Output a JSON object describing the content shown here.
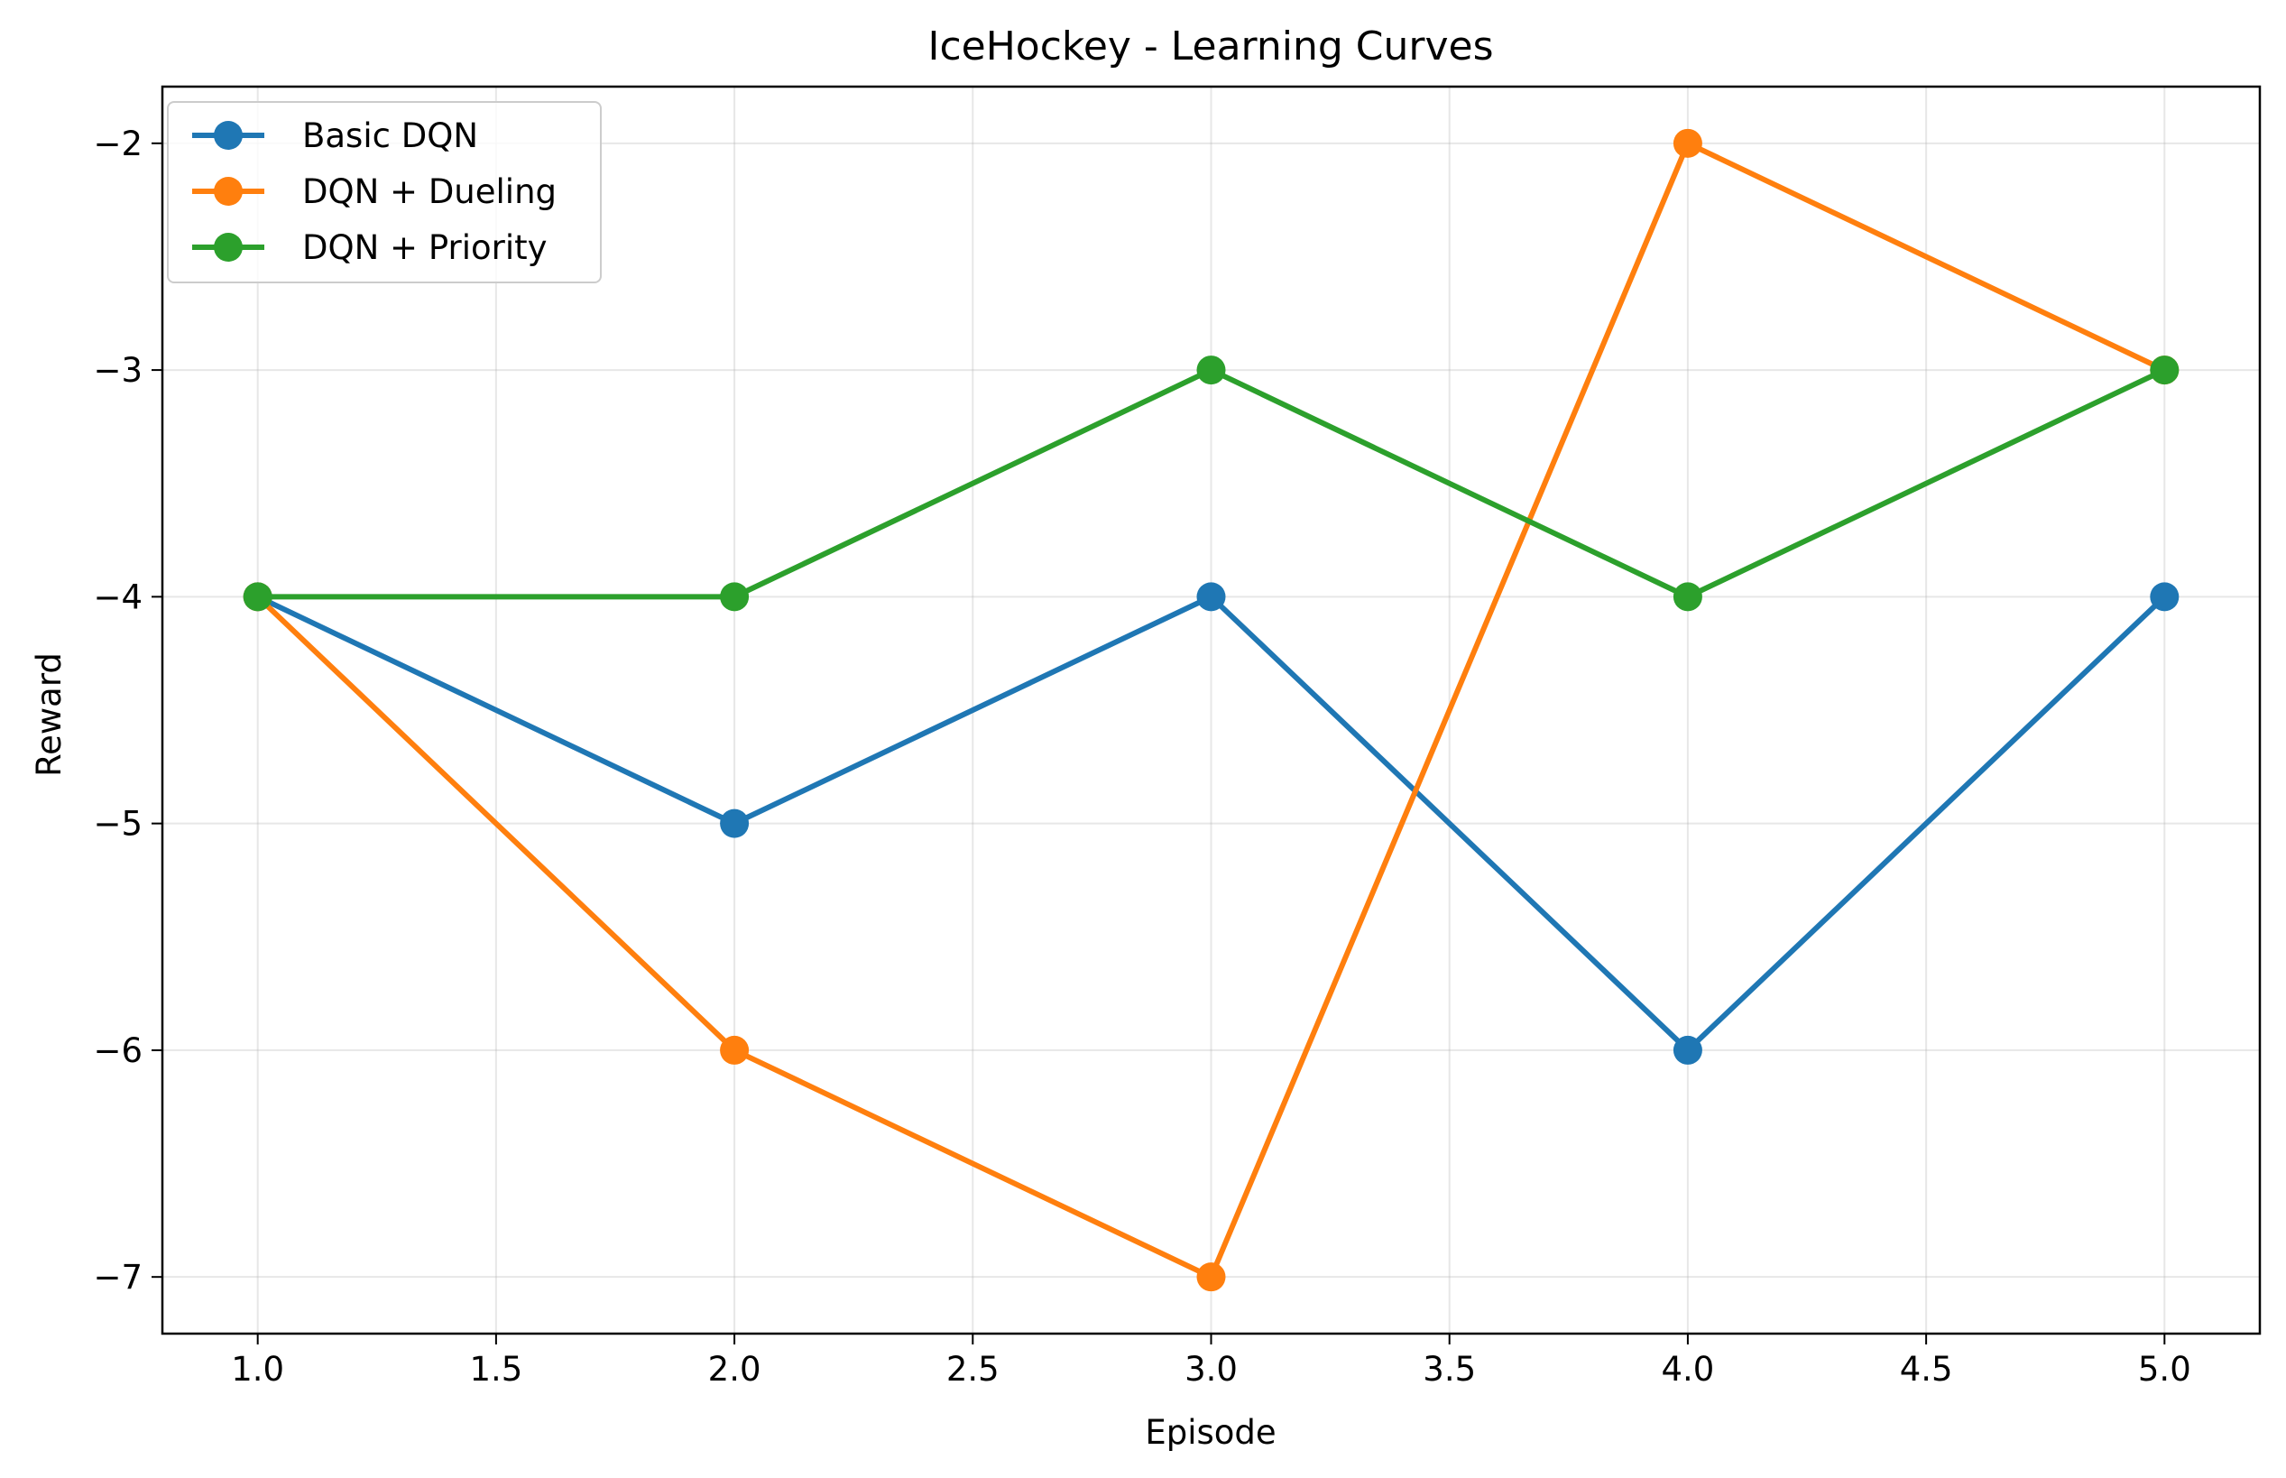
{
  "chart_data": {
    "type": "line",
    "title": "IceHockey - Learning Curves",
    "xlabel": "Episode",
    "ylabel": "Reward",
    "x": [
      1,
      2,
      3,
      4,
      5
    ],
    "xlim": [
      0.8,
      5.2
    ],
    "ylim": [
      -7.25,
      -1.75
    ],
    "xticks": [
      1.0,
      1.5,
      2.0,
      2.5,
      3.0,
      3.5,
      4.0,
      4.5,
      5.0
    ],
    "xtick_labels": [
      "1.0",
      "1.5",
      "2.0",
      "2.5",
      "3.0",
      "3.5",
      "4.0",
      "4.5",
      "5.0"
    ],
    "yticks": [
      -2,
      -3,
      -4,
      -5,
      -6,
      -7
    ],
    "ytick_labels": [
      "−2",
      "−3",
      "−4",
      "−5",
      "−6",
      "−7"
    ],
    "grid": true,
    "legend_position": "top-left",
    "series": [
      {
        "name": "Basic DQN",
        "color": "#1f77b4",
        "values": [
          -4,
          -5,
          -4,
          -6,
          -4
        ]
      },
      {
        "name": "DQN + Dueling",
        "color": "#ff7f0e",
        "values": [
          -4,
          -6,
          -7,
          -2,
          -3
        ]
      },
      {
        "name": "DQN + Priority",
        "color": "#2ca02c",
        "values": [
          -4,
          -4,
          -3,
          -4,
          -3
        ]
      }
    ]
  }
}
